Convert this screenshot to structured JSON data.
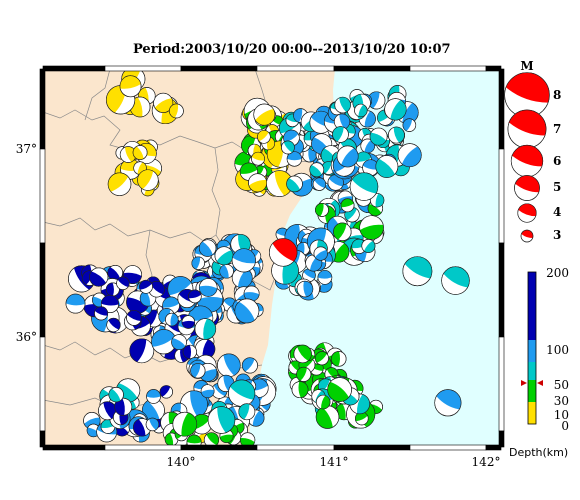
{
  "title": "Period:2003/10/20 00:00--2013/10/20 10:07",
  "map": {
    "x_ticks": [
      "140°",
      "141°",
      "142°"
    ],
    "y_ticks": [
      "37°",
      "36°"
    ],
    "colors": {
      "land": "#fbe6cd",
      "sea": "#e0ffff",
      "boundary": "#8a8a8a",
      "frame": "#000000"
    }
  },
  "magnitude_legend": {
    "title": "M",
    "items": [
      {
        "label": "8",
        "m": 8
      },
      {
        "label": "7",
        "m": 7
      },
      {
        "label": "6",
        "m": 6
      },
      {
        "label": "5",
        "m": 5
      },
      {
        "label": "4",
        "m": 4
      },
      {
        "label": "3",
        "m": 3
      }
    ],
    "color": "#ff0000"
  },
  "depth_scale": {
    "title": "Depth(km)",
    "ticks": [
      "200",
      "100",
      "50",
      "30",
      "10",
      "0"
    ],
    "colors": {
      "0-10": "#ffe000",
      "10-30": "#00d000",
      "30-50": "#00c8c8",
      "50-100": "#1f9bf0",
      "100-200": "#0000b0"
    },
    "current_event_depth_km": 45
  },
  "highlight_event": {
    "lon": 140.67,
    "lat": 36.45,
    "color": "#ff0000"
  }
}
